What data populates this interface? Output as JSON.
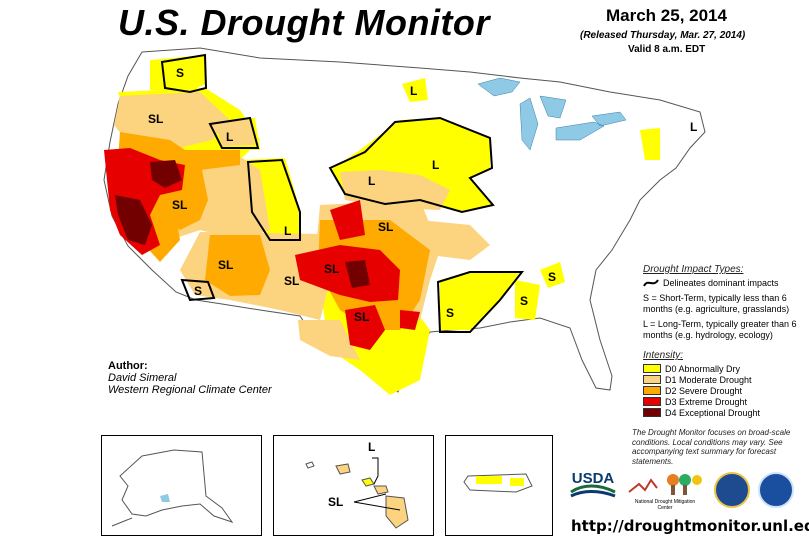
{
  "header": {
    "title": "U.S. Drought Monitor",
    "date": "March 25, 2014",
    "released": "(Released Thursday, Mar. 27, 2014)",
    "valid": "Valid 8 a.m. EDT"
  },
  "author": {
    "heading": "Author:",
    "name": "David Simeral",
    "org": "Western Regional Climate Center"
  },
  "impact_legend": {
    "heading": "Drought Impact Types:",
    "delineates": "Delineates dominant impacts",
    "short_term": "S = Short-Term, typically less than 6 months (e.g. agriculture, grasslands)",
    "long_term": "L = Long-Term, typically greater than 6 months (e.g. hydrology, ecology)"
  },
  "intensity_legend": {
    "heading": "Intensity:",
    "items": [
      {
        "label": "D0 Abnormally Dry",
        "color": "#ffff00"
      },
      {
        "label": "D1 Moderate Drought",
        "color": "#fcd37f"
      },
      {
        "label": "D2 Severe Drought",
        "color": "#ffaa00"
      },
      {
        "label": "D3 Extreme Drought",
        "color": "#e60000"
      },
      {
        "label": "D4 Exceptional Drought",
        "color": "#730000"
      }
    ]
  },
  "note": "The Drought Monitor focuses on broad-scale conditions. Local conditions may vary. See accompanying text summary for forecast statements.",
  "url": "http://droughtmonitor.unl.edu/",
  "map_labels": {
    "pnw_s": "S",
    "or_sl": "SL",
    "id_l": "L",
    "ca_sl": "SL",
    "wy_l": "L",
    "mn_l": "L",
    "ne_l": "L",
    "ia_l": "L",
    "ne_sl": "SL",
    "sw_sl": "SL",
    "az_s": "S",
    "nm_sl": "SL",
    "ok_sl": "SL",
    "tx_sl": "SL",
    "ar_s": "S",
    "al_s": "S",
    "ga_s": "S",
    "me_l": "L",
    "hi_l": "L",
    "hi_sl": "SL"
  },
  "logos": {
    "usda": "USDA",
    "ndmc": "National Drought Mitigation Center"
  },
  "colors": {
    "water": "#8ecae6",
    "d0": "#ffff00",
    "d1": "#fcd37f",
    "d2": "#ffaa00",
    "d3": "#e60000",
    "d4": "#730000",
    "usda_green": "#1a6b3a",
    "usda_blue": "#0b3a6e"
  }
}
